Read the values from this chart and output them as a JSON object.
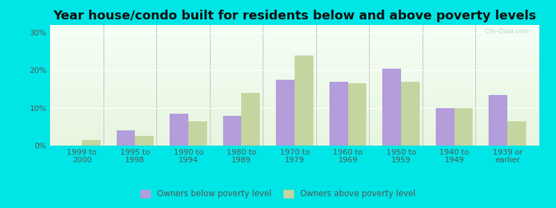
{
  "title": "Year house/condo built for residents below and above poverty levels",
  "categories": [
    "1999 to\n2000",
    "1995 to\n1998",
    "1990 to\n1994",
    "1980 to\n1989",
    "1970 to\n1979",
    "1960 to\n1969",
    "1950 to\n1959",
    "1940 to\n1949",
    "1939 or\nearlier"
  ],
  "below_poverty": [
    0.0,
    4.0,
    8.5,
    8.0,
    17.5,
    17.0,
    20.5,
    10.0,
    13.5
  ],
  "above_poverty": [
    1.5,
    2.5,
    6.5,
    14.0,
    24.0,
    16.5,
    17.0,
    10.0,
    6.5
  ],
  "below_color": "#b39ddb",
  "above_color": "#c5d5a0",
  "yticks": [
    0,
    10,
    20,
    30
  ],
  "ylim": [
    0,
    32
  ],
  "title_fontsize": 13,
  "tick_fontsize": 8,
  "legend_below_label": "Owners below poverty level",
  "legend_above_label": "Owners above poverty level",
  "outer_bg": "#00e5e5",
  "grid_color": "#ffffff",
  "separator_color": "#bbbbbb",
  "text_color": "#555555",
  "watermark": "City-Data.com"
}
